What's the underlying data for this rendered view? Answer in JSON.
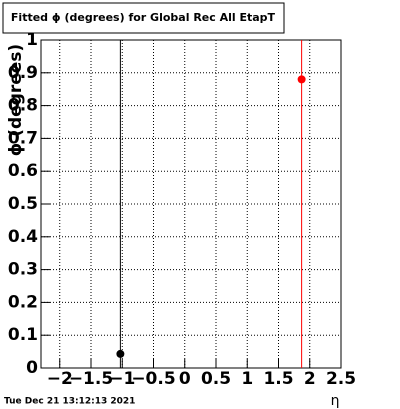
{
  "chart_data": {
    "type": "scatter",
    "title": "Fitted ϕ (degrees) for Global Rec All EtapT",
    "x_label": "η",
    "y_label": "ϕ (degrees)",
    "timestamp": "Tue Dec 21 13:12:13 2021",
    "series": [
      {
        "color": "#000000",
        "x": [
          -1.03
        ],
        "values": [
          0.043
        ],
        "errors": [
          1.0
        ]
      },
      {
        "color": "#ff0000",
        "x": [
          1.87
        ],
        "values": [
          0.88
        ],
        "errors": [
          0.9
        ]
      }
    ],
    "xlim": [
      -2.3,
      2.5
    ],
    "xticks": [
      {
        "value": -2,
        "label": "−2"
      },
      {
        "value": -1.5,
        "label": "−1.5"
      },
      {
        "value": -1,
        "label": "−1"
      },
      {
        "value": -0.5,
        "label": "−0.5"
      },
      0,
      0.5,
      1,
      1.5,
      2,
      2.5
    ],
    "ylim": [
      0,
      1
    ],
    "yticks": [
      0,
      0.1,
      0.2,
      0.3,
      0.4,
      0.5,
      0.6,
      0.7,
      0.8,
      0.9,
      1
    ],
    "grid": true
  }
}
